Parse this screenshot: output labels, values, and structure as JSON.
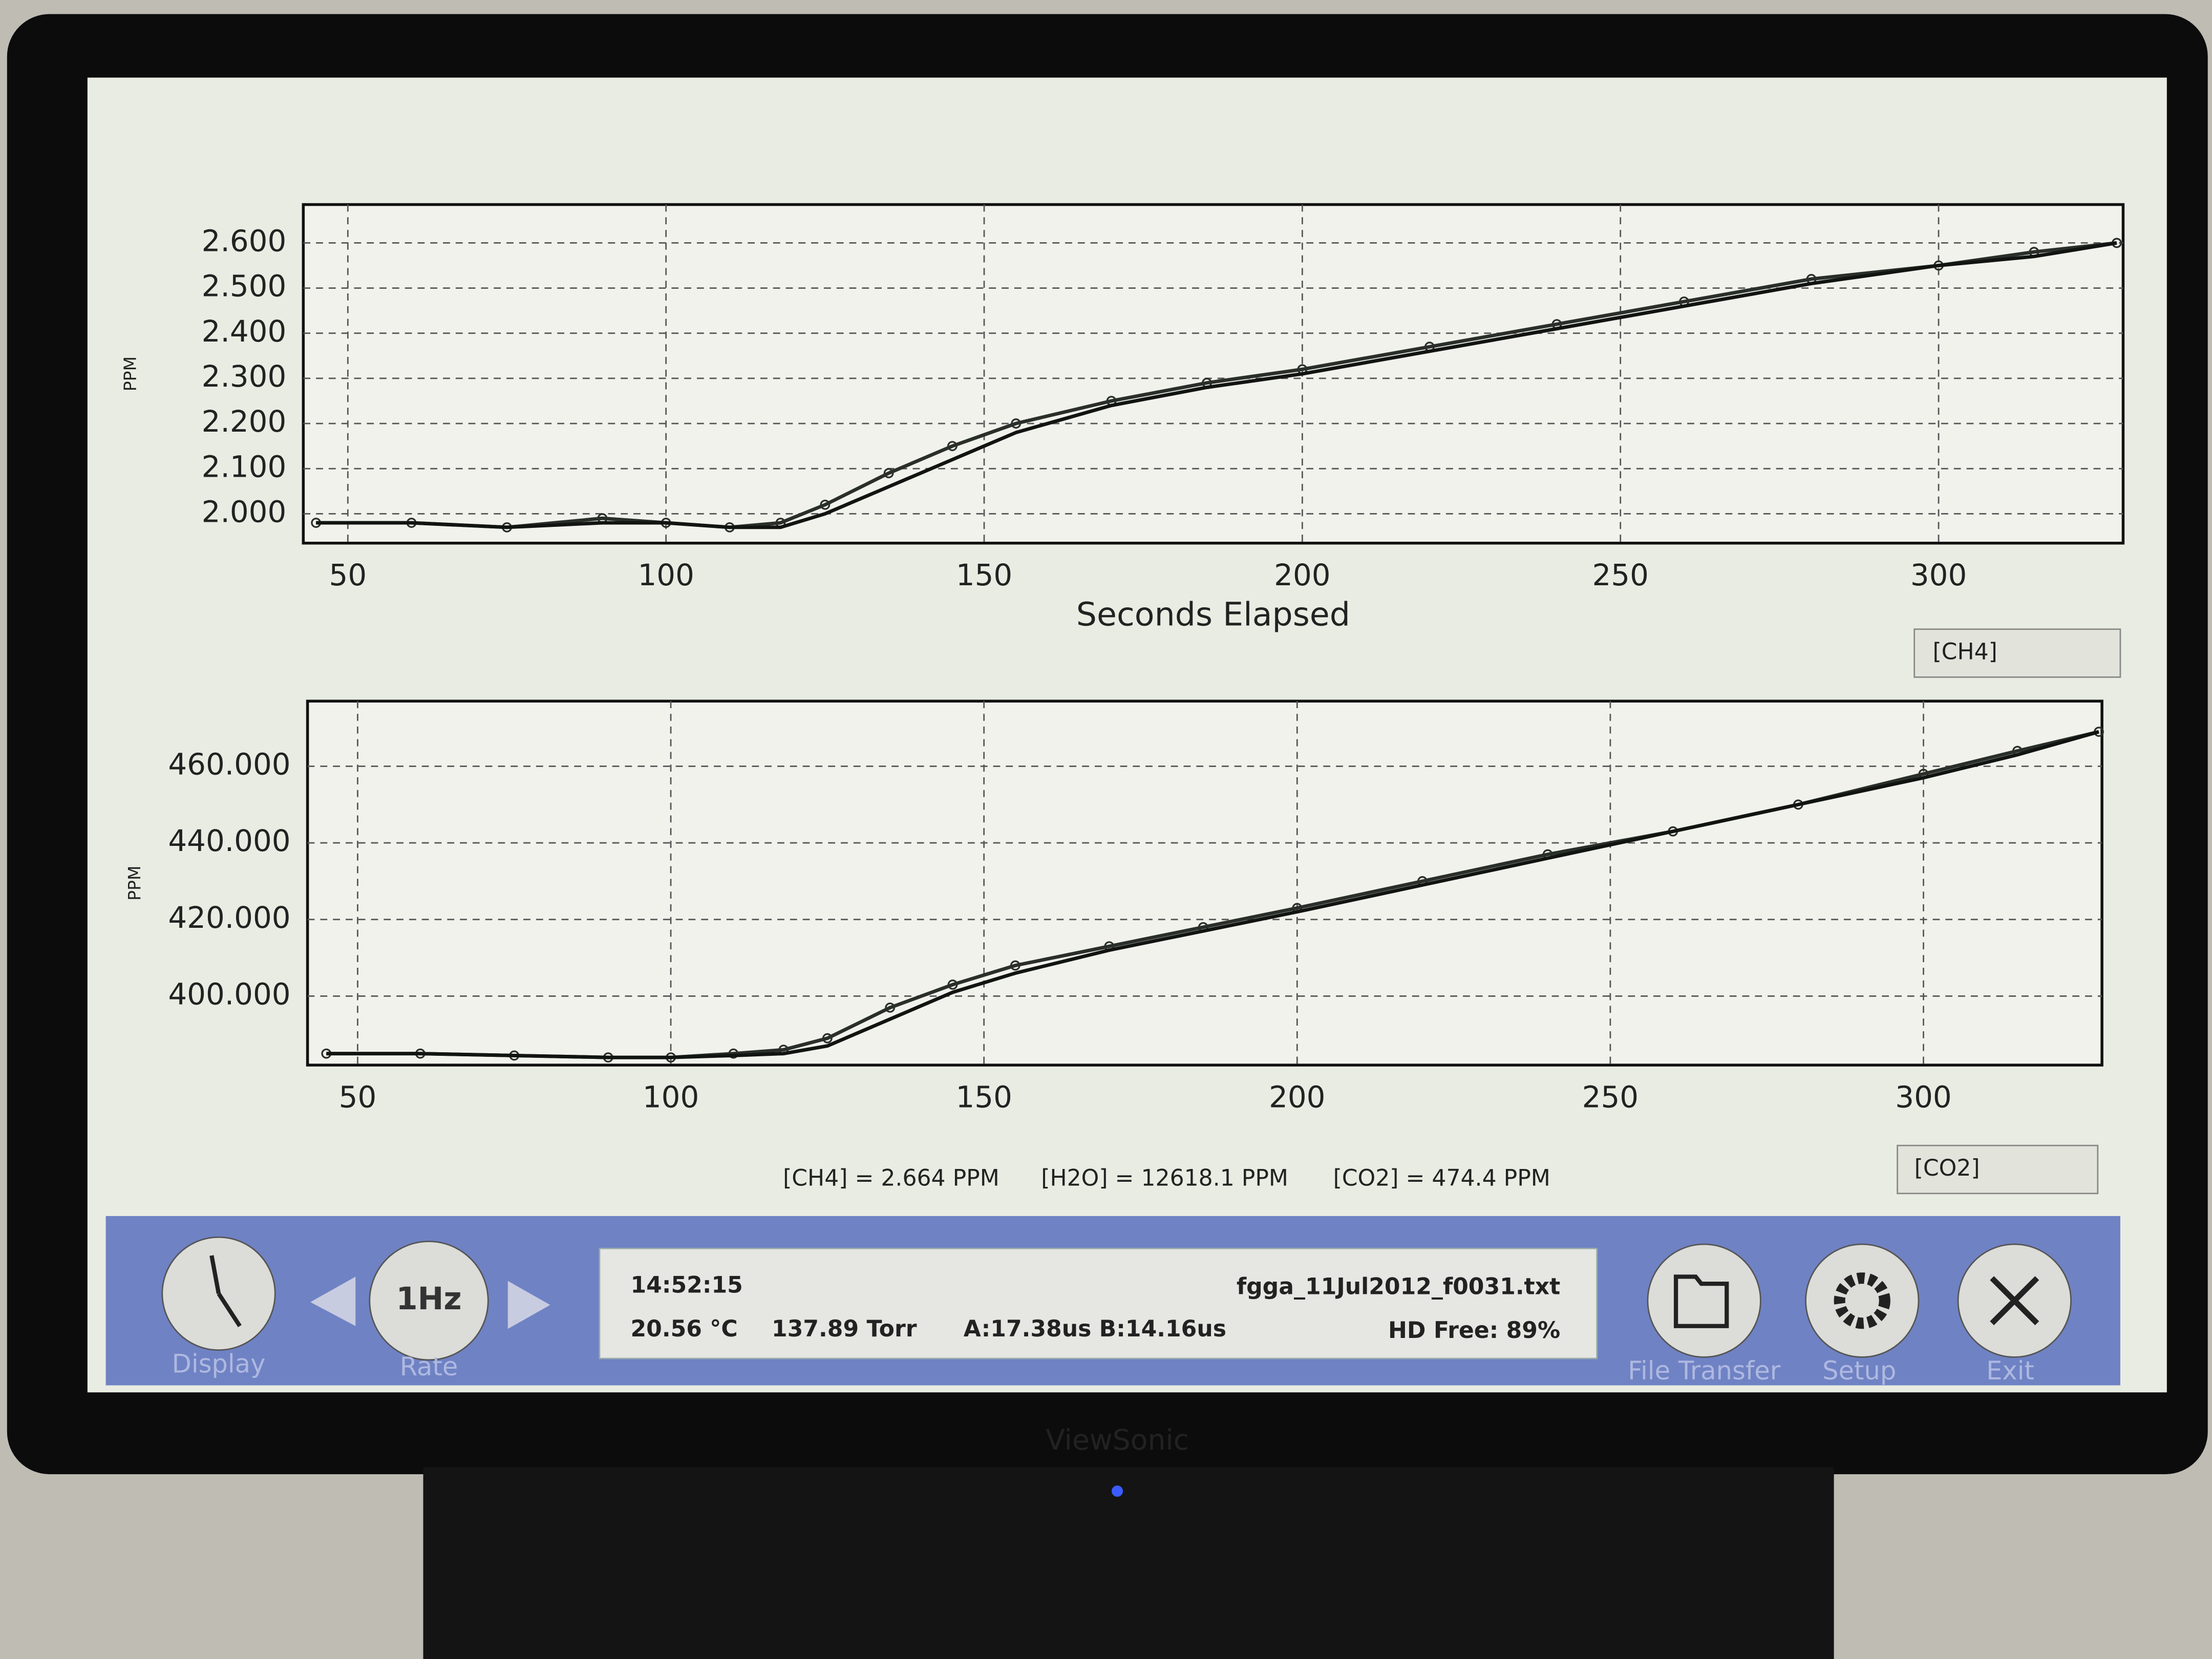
{
  "chart_data": [
    {
      "type": "line",
      "y_label": "PPM",
      "x_label": "Seconds Elapsed",
      "x": [
        45,
        60,
        75,
        90,
        100,
        110,
        118,
        125,
        135,
        145,
        155,
        170,
        185,
        200,
        220,
        240,
        260,
        280,
        300,
        315,
        328
      ],
      "series": [
        {
          "color": "#2a2f2a",
          "values": [
            1.98,
            1.98,
            1.97,
            1.99,
            1.98,
            1.97,
            1.98,
            2.02,
            2.09,
            2.15,
            2.2,
            2.25,
            2.29,
            2.32,
            2.37,
            2.42,
            2.47,
            2.52,
            2.55,
            2.58,
            2.6
          ]
        },
        {
          "color": "#111411",
          "values": [
            1.98,
            1.98,
            1.97,
            1.98,
            1.98,
            1.97,
            1.97,
            2.0,
            2.06,
            2.12,
            2.18,
            2.24,
            2.28,
            2.31,
            2.36,
            2.41,
            2.46,
            2.51,
            2.55,
            2.57,
            2.6
          ]
        }
      ],
      "xlim": [
        43,
        329
      ],
      "xticks": [
        50,
        100,
        150,
        200,
        250,
        300
      ],
      "ylim": [
        1.935,
        2.685
      ],
      "yticks": [
        {
          "value": 2.0,
          "label": "2.000"
        },
        {
          "value": 2.1,
          "label": "2.100"
        },
        {
          "value": 2.2,
          "label": "2.200"
        },
        {
          "value": 2.3,
          "label": "2.300"
        },
        {
          "value": 2.4,
          "label": "2.400"
        },
        {
          "value": 2.5,
          "label": "2.500"
        },
        {
          "value": 2.6,
          "label": "2.600"
        }
      ],
      "grid": true
    },
    {
      "type": "line",
      "y_label": "PPM",
      "x": [
        45,
        60,
        75,
        90,
        100,
        110,
        118,
        125,
        135,
        145,
        155,
        170,
        185,
        200,
        220,
        240,
        260,
        280,
        300,
        315,
        328
      ],
      "series": [
        {
          "color": "#2a2f2a",
          "values": [
            385,
            385,
            384.5,
            384,
            384,
            385,
            386,
            389,
            397,
            403,
            408,
            413,
            418,
            423,
            430,
            437,
            443,
            450,
            458,
            464,
            469
          ]
        },
        {
          "color": "#111411",
          "values": [
            385,
            385,
            384.5,
            384,
            384,
            384.5,
            385,
            387,
            394,
            401,
            406,
            412,
            417,
            422,
            429,
            436,
            443,
            450,
            457,
            463,
            469
          ]
        }
      ],
      "xlim": [
        42,
        328.5
      ],
      "xticks": [
        50,
        100,
        150,
        200,
        250,
        300
      ],
      "ylim": [
        382,
        477
      ],
      "yticks": [
        {
          "value": 400,
          "label": "400.000"
        },
        {
          "value": 420,
          "label": "420.000"
        },
        {
          "value": 440,
          "label": "440.000"
        },
        {
          "value": 460,
          "label": "460.000"
        }
      ],
      "grid": true
    }
  ],
  "selectors": [
    "[CH4]",
    "[CO2]"
  ],
  "readout": [
    "[CH4] = 2.664 PPM",
    "[H2O] = 12618.1 PPM",
    "[CO2] = 474.4 PPM"
  ],
  "status": {
    "time": "14:52:15",
    "temperature": "20.56 °C",
    "pressure": "137.89 Torr",
    "timing": "A:17.38us B:14.16us",
    "file": "fgga_11Jul2012_f0031.txt",
    "disk": "HD Free: 89%"
  },
  "rate": "1Hz",
  "buttons": [
    "Display",
    "Rate",
    "File Transfer",
    "Setup",
    "Exit"
  ],
  "brand": "ViewSonic"
}
